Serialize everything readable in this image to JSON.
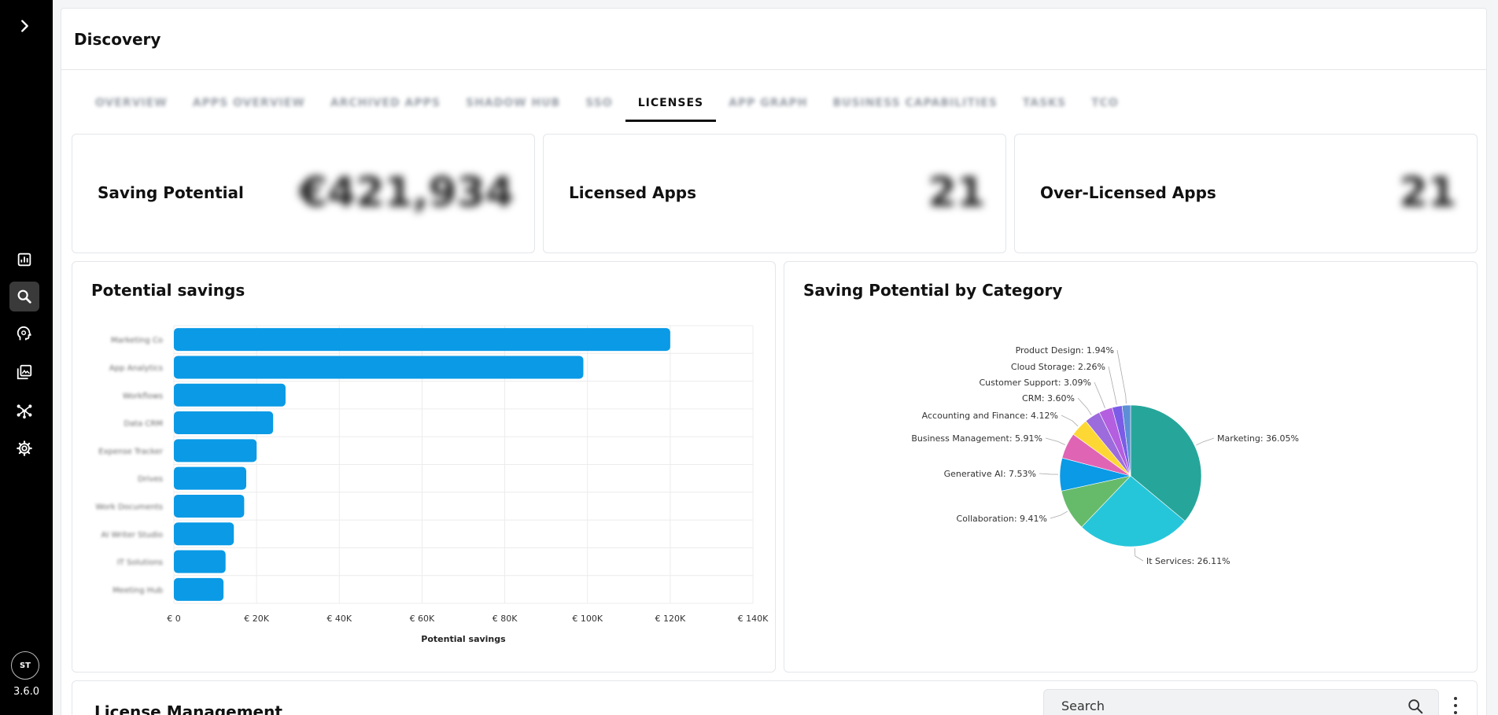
{
  "app": {
    "version": "3.6.0",
    "user_initials": "ST"
  },
  "page": {
    "title": "Discovery"
  },
  "tabs": [
    {
      "label": "OVERVIEW",
      "blurred": true
    },
    {
      "label": "APPS OVERVIEW",
      "blurred": true
    },
    {
      "label": "ARCHIVED APPS",
      "blurred": true
    },
    {
      "label": "SHADOW HUB",
      "blurred": true
    },
    {
      "label": "SSO",
      "blurred": true
    },
    {
      "label": "LICENSES",
      "active": true
    },
    {
      "label": "APP GRAPH",
      "blurred": true
    },
    {
      "label": "BUSINESS CAPABILITIES",
      "blurred": true
    },
    {
      "label": "TASKS",
      "blurred": true
    },
    {
      "label": "TCO",
      "blurred": true
    }
  ],
  "kpis": {
    "saving_potential": {
      "label": "Saving Potential",
      "value": "€421,934"
    },
    "licensed_apps": {
      "label": "Licensed Apps",
      "value": "21"
    },
    "over_licensed_apps": {
      "label": "Over-Licensed Apps",
      "value": "21"
    }
  },
  "bar_card": {
    "title": "Potential savings"
  },
  "pie_card": {
    "title": "Saving Potential by Category"
  },
  "license_management": {
    "title": "License Management",
    "search_placeholder": "Search"
  },
  "colors": {
    "bar": "#0a9ae6",
    "sidebar": "#000000"
  },
  "chart_data": [
    {
      "type": "bar",
      "orientation": "horizontal",
      "categories": [
        "Marketing Co",
        "App Analytics",
        "Workflows",
        "Data CRM",
        "Expense Tracker",
        "Drives",
        "Work Documents",
        "AI Writer Studio",
        "IT Solutions",
        "Meeting Hub"
      ],
      "values": [
        120000,
        99000,
        27000,
        24000,
        20000,
        17500,
        17000,
        14500,
        12500,
        12000
      ],
      "xlabel": "Potential savings",
      "ticks": [
        "€ 0",
        "€ 20K",
        "€ 40K",
        "€ 60K",
        "€ 80K",
        "€ 100K",
        "€ 120K",
        "€ 140K"
      ],
      "xlim": [
        0,
        140000
      ],
      "grid": true,
      "color": "#0a9ae6"
    },
    {
      "type": "pie",
      "slices": [
        {
          "label": "Marketing: 36.05%",
          "value": 36.05,
          "color": "#26a69a"
        },
        {
          "label": "It Services: 26.11%",
          "value": 26.11,
          "color": "#26c6da"
        },
        {
          "label": "Collaboration: 9.41%",
          "value": 9.41,
          "color": "#66bb6a"
        },
        {
          "label": "Generative AI: 7.53%",
          "value": 7.53,
          "color": "#0a9ae6"
        },
        {
          "label": "Business Management: 5.91%",
          "value": 5.91,
          "color": "#e064b4"
        },
        {
          "label": "Accounting and Finance: 4.12%",
          "value": 4.12,
          "color": "#fdd835"
        },
        {
          "label": "CRM: 3.60%",
          "value": 3.6,
          "color": "#9c6bdc"
        },
        {
          "label": "Customer Support: 3.09%",
          "value": 3.09,
          "color": "#b45ee0"
        },
        {
          "label": "Cloud Storage: 2.26%",
          "value": 2.26,
          "color": "#7b5ce6"
        },
        {
          "label": "Product Design: 1.94%",
          "value": 1.94,
          "color": "#5c8fd6"
        }
      ]
    }
  ]
}
